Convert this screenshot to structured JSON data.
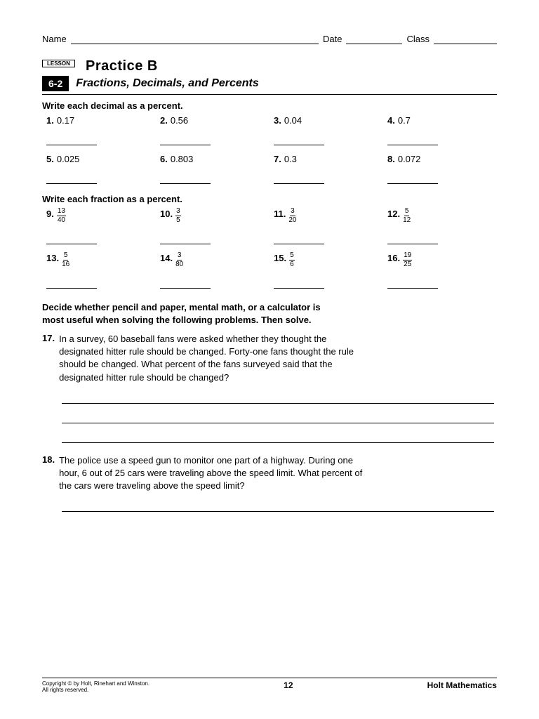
{
  "header": {
    "name_label": "Name",
    "date_label": "Date",
    "class_label": "Class"
  },
  "lesson": {
    "box_label": "LESSON",
    "number": "6-2",
    "practice_title": "Practice B",
    "subtitle": "Fractions, Decimals, and Percents"
  },
  "section1": {
    "heading": "Write each decimal as a percent.",
    "rows": [
      [
        {
          "n": "1.",
          "v": "0.17"
        },
        {
          "n": "2.",
          "v": "0.56"
        },
        {
          "n": "3.",
          "v": "0.04"
        },
        {
          "n": "4.",
          "v": "0.7"
        }
      ],
      [
        {
          "n": "5.",
          "v": "0.025"
        },
        {
          "n": "6.",
          "v": "0.803"
        },
        {
          "n": "7.",
          "v": "0.3"
        },
        {
          "n": "8.",
          "v": "0.072"
        }
      ]
    ]
  },
  "section2": {
    "heading": "Write each fraction as a percent.",
    "rows": [
      [
        {
          "n": "9.",
          "num": "13",
          "den": "40"
        },
        {
          "n": "10.",
          "num": "3",
          "den": "5"
        },
        {
          "n": "11.",
          "num": "3",
          "den": "20"
        },
        {
          "n": "12.",
          "num": "5",
          "den": "12"
        }
      ],
      [
        {
          "n": "13.",
          "num": "5",
          "den": "16"
        },
        {
          "n": "14.",
          "num": "3",
          "den": "80"
        },
        {
          "n": "15.",
          "num": "5",
          "den": "6"
        },
        {
          "n": "16.",
          "num": "19",
          "den": "25"
        }
      ]
    ]
  },
  "word_section": {
    "intro": "Decide whether pencil and paper, mental math, or a calculator is most useful when solving the following problems. Then solve.",
    "problems": [
      {
        "n": "17.",
        "text": "In a survey, 60 baseball fans were asked whether they thought the designated hitter rule should be changed. Forty-one fans thought the rule should be changed. What percent of the fans surveyed said that the designated hitter rule should be changed?",
        "blanks": 3
      },
      {
        "n": "18.",
        "text": "The police use a speed gun to monitor one part of a highway. During one hour, 6 out of 25 cars were traveling above the speed limit. What percent of the cars were traveling above the speed limit?",
        "blanks": 1
      }
    ]
  },
  "footer": {
    "copyright_line1": "Copyright © by Holt, Rinehart and Winston.",
    "copyright_line2": "All rights reserved.",
    "page_number": "12",
    "brand": "Holt Mathematics"
  },
  "style": {
    "text_color": "#000000",
    "bg_color": "#ffffff",
    "title_fontsize": 20,
    "subtitle_fontsize": 16,
    "body_fontsize": 13
  }
}
